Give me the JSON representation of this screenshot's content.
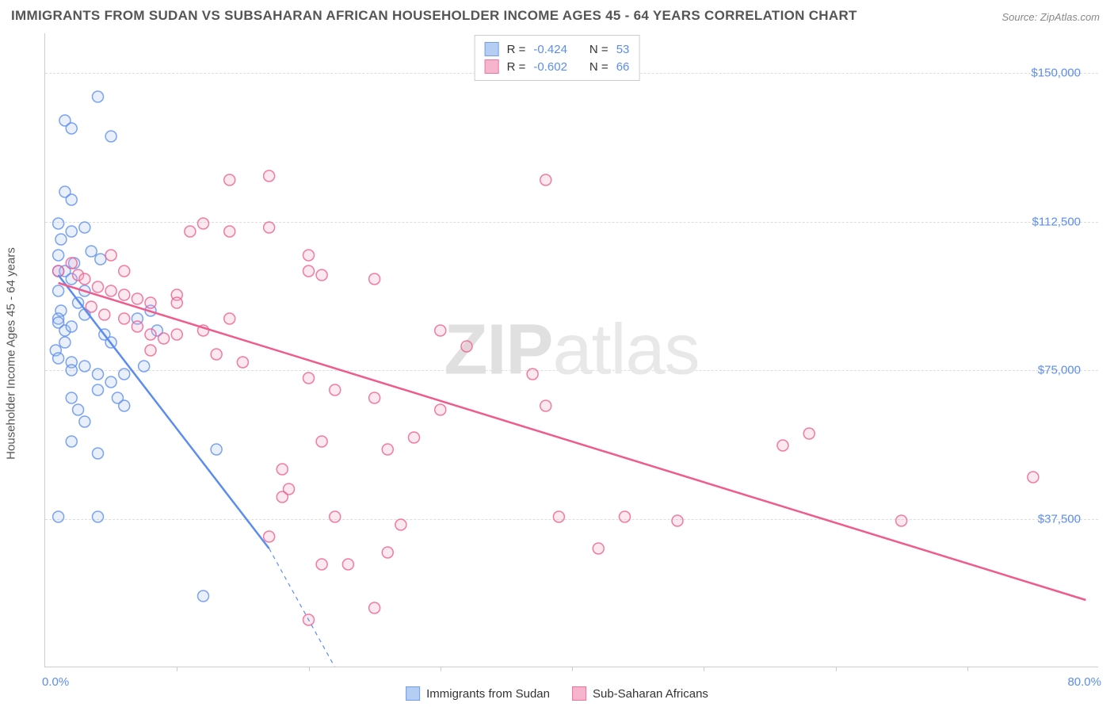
{
  "title": "IMMIGRANTS FROM SUDAN VS SUBSAHARAN AFRICAN HOUSEHOLDER INCOME AGES 45 - 64 YEARS CORRELATION CHART",
  "source": "Source: ZipAtlas.com",
  "watermark": {
    "part1": "ZIP",
    "part2": "atlas"
  },
  "chart": {
    "type": "scatter",
    "background_color": "#ffffff",
    "grid_color": "#dddddd",
    "axis_color": "#cccccc",
    "xlabel_min": "0.0%",
    "xlabel_max": "80.0%",
    "ylabel": "Householder Income Ages 45 - 64 years",
    "xlim": [
      0,
      80
    ],
    "ylim": [
      0,
      160000
    ],
    "yticks": [
      {
        "value": 37500,
        "label": "$37,500"
      },
      {
        "value": 75000,
        "label": "$75,000"
      },
      {
        "value": 112500,
        "label": "$112,500"
      },
      {
        "value": 150000,
        "label": "$150,000"
      }
    ],
    "xticks": [
      10,
      20,
      30,
      40,
      50,
      60,
      70
    ],
    "marker_radius": 7,
    "marker_stroke_width": 1.5,
    "marker_fill_opacity": 0.25,
    "trend_width": 2.5,
    "series": [
      {
        "id": "sudan",
        "name": "Immigrants from Sudan",
        "color": "#5b8def",
        "fill": "#a8c5f0",
        "R": "-0.424",
        "N": "53",
        "trend": {
          "x1": 1,
          "y1": 99000,
          "x2": 17,
          "y2": 30000,
          "dash_x2": 22,
          "dash_y2": 0
        },
        "points": [
          [
            1,
            100000
          ],
          [
            1,
            95000
          ],
          [
            1.2,
            90000
          ],
          [
            1,
            88000
          ],
          [
            1.5,
            85000
          ],
          [
            0.8,
            80000
          ],
          [
            1,
            104000
          ],
          [
            1.2,
            108000
          ],
          [
            1.5,
            120000
          ],
          [
            2,
            118000
          ],
          [
            4,
            144000
          ],
          [
            1.5,
            138000
          ],
          [
            2,
            136000
          ],
          [
            5,
            134000
          ],
          [
            1,
            112000
          ],
          [
            2,
            110000
          ],
          [
            1.5,
            100000
          ],
          [
            2,
            98000
          ],
          [
            3,
            95000
          ],
          [
            2.5,
            92000
          ],
          [
            3,
            89000
          ],
          [
            1,
            87000
          ],
          [
            2,
            86000
          ],
          [
            1.5,
            82000
          ],
          [
            1,
            78000
          ],
          [
            2,
            77000
          ],
          [
            3,
            76000
          ],
          [
            2,
            75000
          ],
          [
            4,
            74000
          ],
          [
            4.5,
            84000
          ],
          [
            5,
            82000
          ],
          [
            6,
            74000
          ],
          [
            7.5,
            76000
          ],
          [
            4,
            70000
          ],
          [
            2,
            68000
          ],
          [
            3,
            62000
          ],
          [
            2.5,
            65000
          ],
          [
            5.5,
            68000
          ],
          [
            6,
            66000
          ],
          [
            5,
            72000
          ],
          [
            2,
            57000
          ],
          [
            4,
            54000
          ],
          [
            13,
            55000
          ],
          [
            12,
            18000
          ],
          [
            1,
            38000
          ],
          [
            4,
            38000
          ],
          [
            7,
            88000
          ],
          [
            8,
            90000
          ],
          [
            8.5,
            85000
          ],
          [
            3.5,
            105000
          ],
          [
            4.2,
            103000
          ],
          [
            3,
            111000
          ],
          [
            2.2,
            102000
          ]
        ]
      },
      {
        "id": "ssa",
        "name": "Sub-Saharan Africans",
        "color": "#ef5b8d",
        "fill": "#f5a8c5",
        "R": "-0.602",
        "N": "66",
        "trend": {
          "x1": 1,
          "y1": 97000,
          "x2": 79,
          "y2": 17000
        },
        "points": [
          [
            1,
            100000
          ],
          [
            2,
            102000
          ],
          [
            2.5,
            99000
          ],
          [
            3,
            98000
          ],
          [
            4,
            96000
          ],
          [
            5,
            95000
          ],
          [
            6,
            94000
          ],
          [
            7,
            93000
          ],
          [
            8,
            92000
          ],
          [
            3.5,
            91000
          ],
          [
            4.5,
            89000
          ],
          [
            6,
            88000
          ],
          [
            7,
            86000
          ],
          [
            8,
            84000
          ],
          [
            9,
            83000
          ],
          [
            10,
            84000
          ],
          [
            5,
            104000
          ],
          [
            11,
            110000
          ],
          [
            12,
            112000
          ],
          [
            14,
            110000
          ],
          [
            17,
            111000
          ],
          [
            20,
            104000
          ],
          [
            14,
            123000
          ],
          [
            17,
            124000
          ],
          [
            38,
            123000
          ],
          [
            20,
            100000
          ],
          [
            21,
            99000
          ],
          [
            25,
            98000
          ],
          [
            10,
            94000
          ],
          [
            14,
            88000
          ],
          [
            12,
            85000
          ],
          [
            8,
            80000
          ],
          [
            30,
            85000
          ],
          [
            13,
            79000
          ],
          [
            15,
            77000
          ],
          [
            32,
            81000
          ],
          [
            37,
            74000
          ],
          [
            20,
            73000
          ],
          [
            22,
            70000
          ],
          [
            25,
            68000
          ],
          [
            28,
            58000
          ],
          [
            21,
            57000
          ],
          [
            38,
            66000
          ],
          [
            30,
            65000
          ],
          [
            26,
            55000
          ],
          [
            18,
            50000
          ],
          [
            18.5,
            45000
          ],
          [
            18,
            43000
          ],
          [
            22,
            38000
          ],
          [
            42,
            30000
          ],
          [
            27,
            36000
          ],
          [
            39,
            38000
          ],
          [
            44,
            38000
          ],
          [
            48,
            37000
          ],
          [
            56,
            56000
          ],
          [
            58,
            59000
          ],
          [
            65,
            37000
          ],
          [
            75,
            48000
          ],
          [
            25,
            15000
          ],
          [
            21,
            26000
          ],
          [
            23,
            26000
          ],
          [
            17,
            33000
          ],
          [
            26,
            29000
          ],
          [
            20,
            12000
          ],
          [
            10,
            92000
          ],
          [
            6,
            100000
          ]
        ]
      }
    ],
    "legend_top_labels": {
      "R": "R =",
      "N": "N ="
    }
  }
}
